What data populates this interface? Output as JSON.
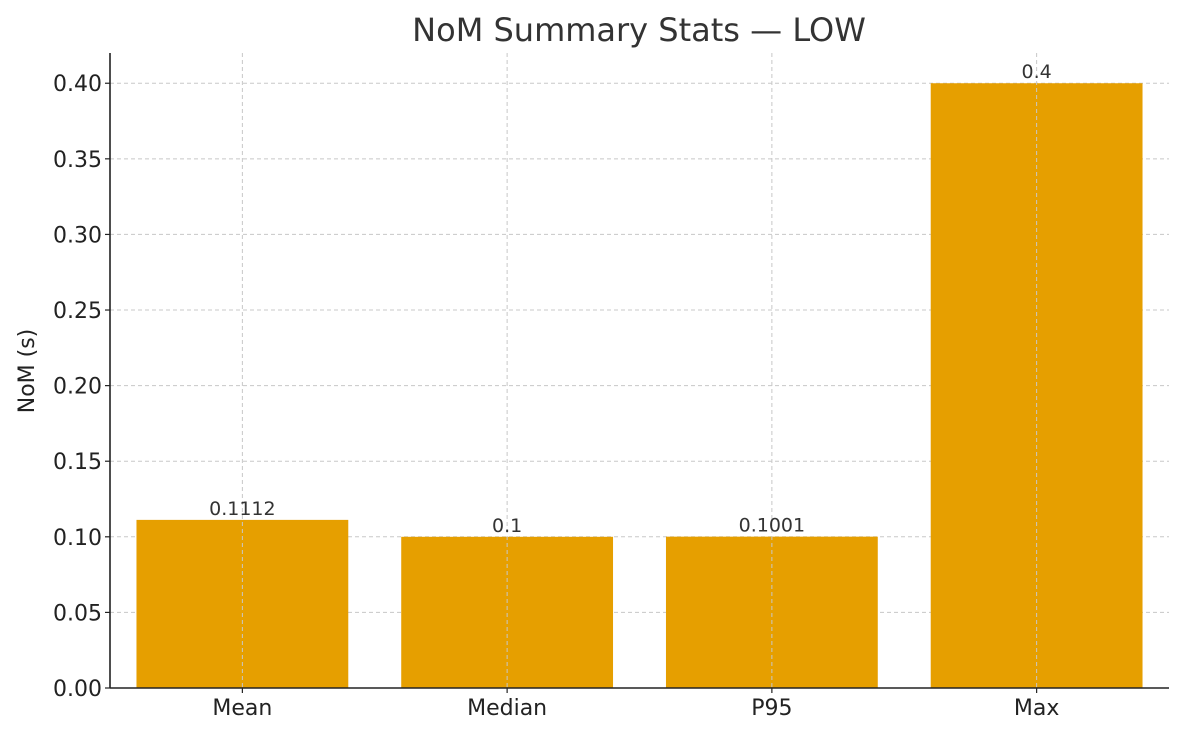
{
  "chart_data": {
    "type": "bar",
    "title": "NoM Summary Stats — LOW",
    "xlabel": "",
    "ylabel": "NoM (s)",
    "categories": [
      "Mean",
      "Median",
      "P95",
      "Max"
    ],
    "values": [
      0.1112,
      0.1,
      0.1001,
      0.4
    ],
    "data_labels": [
      "0.1112",
      "0.1",
      "0.1001",
      "0.4"
    ],
    "ylim": [
      0,
      0.42
    ],
    "yticks": [
      0.0,
      0.05,
      0.1,
      0.15,
      0.2,
      0.25,
      0.3,
      0.35,
      0.4
    ],
    "ytick_labels": [
      "0.00",
      "0.05",
      "0.10",
      "0.15",
      "0.20",
      "0.25",
      "0.30",
      "0.35",
      "0.40"
    ],
    "grid": true,
    "legend": "none",
    "colors": {
      "bar": "#E69F00",
      "grid": "#c8c8c8",
      "axis": "#222222",
      "text": "#333333"
    }
  }
}
